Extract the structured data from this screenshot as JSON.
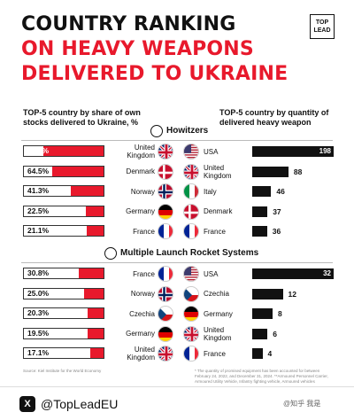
{
  "title": {
    "line1": "COUNTRY RANKING",
    "line2": "ON HEAVY WEAPONS",
    "line3": "DELIVERED TO UKRAINE"
  },
  "logo": {
    "line1": "TOP",
    "line2": "LEAD"
  },
  "subtitles": {
    "left": "TOP-5 country by share of own stocks delivered to Ukraine, %",
    "right": "TOP-5 country by quantity of delivered heavy weapon"
  },
  "sections": {
    "howitzers": "Howitzers",
    "mlrs": "Multiple Launch Rocket Systems"
  },
  "colors": {
    "accent": "#e8192c",
    "dark": "#111111"
  },
  "chart_data": [
    {
      "type": "bar",
      "section": "Howitzers",
      "share": {
        "categories": [
          "United Kingdom",
          "Denmark",
          "Norway",
          "Germany",
          "France"
        ],
        "values": [
          75.2,
          64.5,
          41.3,
          22.5,
          21.1
        ],
        "labels": [
          "75.2%",
          "64.5%",
          "41.3%",
          "22.5%",
          "21.1%"
        ]
      },
      "quantity": {
        "categories": [
          "USA",
          "United Kingdom",
          "Italy",
          "Denmark",
          "France"
        ],
        "values": [
          198,
          88,
          46,
          37,
          36
        ],
        "labels": [
          "198",
          "88",
          "46",
          "37",
          "36"
        ]
      }
    },
    {
      "type": "bar",
      "section": "Multiple Launch Rocket Systems",
      "share": {
        "categories": [
          "France",
          "Norway",
          "Czechia",
          "Germany",
          "United Kingdom"
        ],
        "values": [
          30.8,
          25.0,
          20.3,
          19.5,
          17.1
        ],
        "labels": [
          "30.8%",
          "25.0%",
          "20.3%",
          "19.5%",
          "17.1%"
        ]
      },
      "quantity": {
        "categories": [
          "USA",
          "Czechia",
          "Germany",
          "United Kingdom",
          "France"
        ],
        "values": [
          32,
          12,
          8,
          6,
          4
        ],
        "labels": [
          "32",
          "12",
          "8",
          "6",
          "4"
        ]
      }
    }
  ],
  "footnotes": {
    "left": "Source: Kiel Institute for the World Economy",
    "right": "* The quantity of promised equipment has been accounted for between February 24, 2022, and December 31, 2024. **Armoured Personnel Carrier, Armoured Utility Vehicle, Infantry fighting vehicle, Armoured vehicles"
  },
  "footer": {
    "handle": "@TopLeadEU",
    "watermark": "@知乎 我是"
  }
}
